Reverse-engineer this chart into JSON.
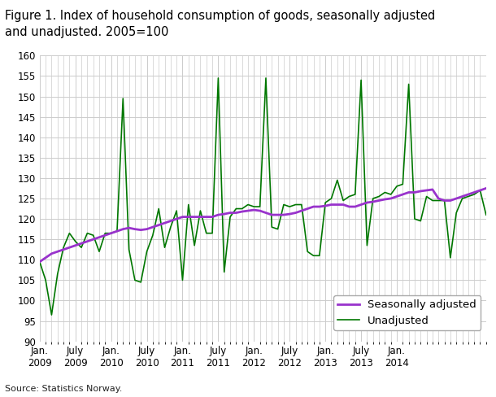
{
  "title": "Figure 1. Index of household consumption of goods, seasonally adjusted\nand unadjusted. 2005=100",
  "source": "Source: Statistics Norway.",
  "ylim": [
    90,
    160
  ],
  "yticks": [
    90,
    95,
    100,
    105,
    110,
    115,
    120,
    125,
    130,
    135,
    140,
    145,
    150,
    155,
    160
  ],
  "legend_labels": [
    "Seasonally adjusted",
    "Unadjusted"
  ],
  "seasonally_adjusted_color": "#9933CC",
  "unadjusted_color": "#007700",
  "background_color": "#ffffff",
  "grid_color": "#cccccc",
  "title_fontsize": 10.5,
  "tick_fontsize": 8.5,
  "legend_fontsize": 9.5,
  "seasonally_adjusted": [
    109.5,
    110.5,
    111.5,
    112.0,
    112.5,
    113.0,
    113.5,
    114.0,
    114.5,
    115.0,
    115.5,
    116.0,
    116.5,
    117.0,
    117.5,
    117.8,
    117.5,
    117.3,
    117.5,
    118.0,
    118.5,
    119.0,
    119.5,
    120.0,
    120.5,
    120.5,
    120.5,
    120.5,
    120.5,
    120.5,
    121.0,
    121.2,
    121.5,
    121.5,
    121.8,
    122.0,
    122.2,
    122.0,
    121.5,
    121.0,
    121.0,
    121.0,
    121.2,
    121.5,
    122.0,
    122.5,
    123.0,
    123.0,
    123.2,
    123.5,
    123.5,
    123.5,
    123.0,
    123.0,
    123.5,
    124.0,
    124.2,
    124.5,
    124.8,
    125.0,
    125.5,
    126.0,
    126.5,
    126.5,
    126.8,
    127.0,
    127.2,
    125.0,
    124.5,
    124.5,
    125.0,
    125.5,
    126.0,
    126.5,
    127.0,
    127.5
  ],
  "unadjusted": [
    109.5,
    105.0,
    96.5,
    106.5,
    113.0,
    116.5,
    114.5,
    113.0,
    116.5,
    116.0,
    112.0,
    116.5,
    116.5,
    117.0,
    149.5,
    112.5,
    105.0,
    104.5,
    112.0,
    116.0,
    122.5,
    113.0,
    118.0,
    122.0,
    105.0,
    123.5,
    113.5,
    122.0,
    116.5,
    116.5,
    154.5,
    107.0,
    120.5,
    122.5,
    122.5,
    123.5,
    123.0,
    123.0,
    154.5,
    118.0,
    117.5,
    123.5,
    123.0,
    123.5,
    123.5,
    112.0,
    111.0,
    111.0,
    124.0,
    125.0,
    129.5,
    124.5,
    125.5,
    126.0,
    154.0,
    113.5,
    125.0,
    125.5,
    126.5,
    126.0,
    128.0,
    128.5,
    153.0,
    120.0,
    119.5,
    125.5,
    124.5,
    124.5,
    124.5,
    110.5,
    121.5,
    125.0,
    125.5,
    126.0,
    127.0,
    121.0
  ],
  "x_tick_positions": [
    0,
    6,
    12,
    18,
    24,
    30,
    36,
    42,
    48,
    54,
    60,
    66
  ],
  "x_tick_labels": [
    "Jan.\n2009",
    "July\n2009",
    "Jan.\n2010",
    "July\n2010",
    "Jan.\n2011",
    "July\n2011",
    "Jan.\n2012",
    "July\n2012",
    "Jan.\n2013",
    "July\n2013",
    "Jan.\n2014",
    ""
  ],
  "xlim": [
    0,
    75
  ]
}
